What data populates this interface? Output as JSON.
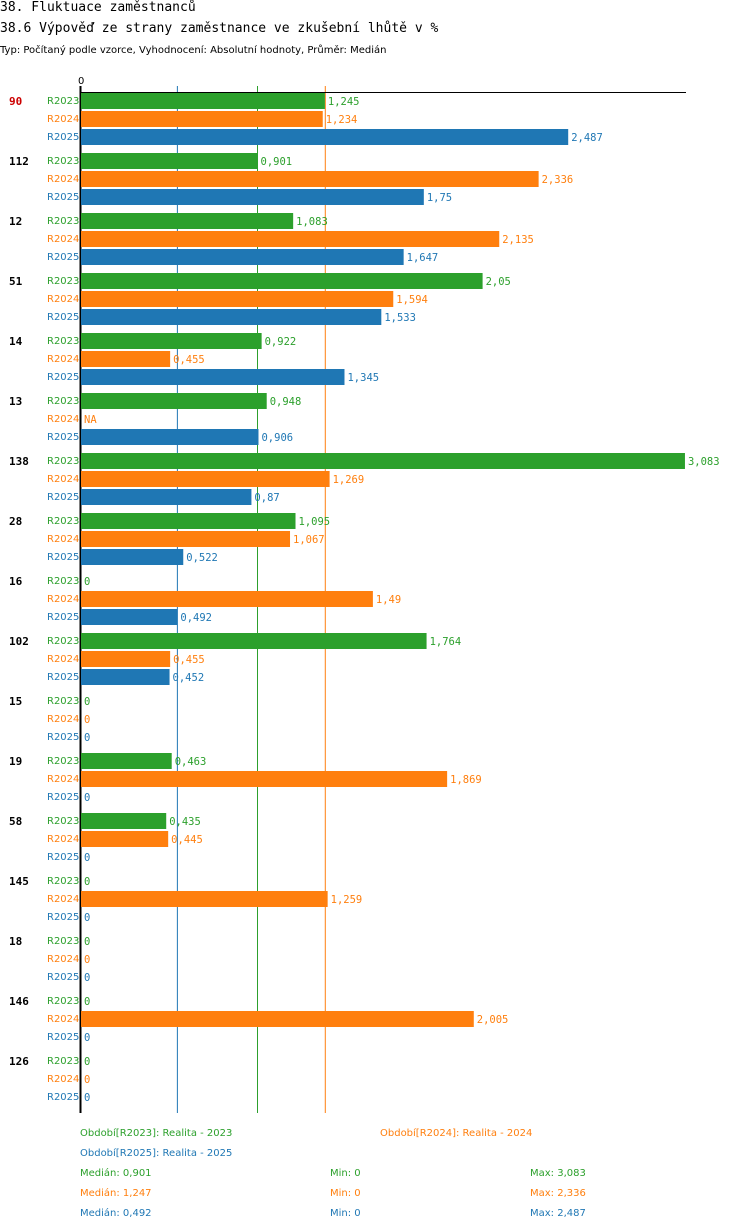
{
  "title": "38. Fluktuace zaměstnanců",
  "subtitle": "38.6 Výpověď ze strany zaměstnance ve zkušební lhůtě v %",
  "type_line": "Typ: Počítaný podle vzorce, Vyhodnocení: Absolutní hodnoty, Průměr: Medián",
  "colors": {
    "R2023": "#2ca02c",
    "R2024": "#ff7f0e",
    "R2025": "#1f77b4",
    "highlight": "#cc0000"
  },
  "chart_data": {
    "type": "bar",
    "orientation": "horizontal",
    "axis_zero_label": "0",
    "xlim": [
      0,
      3.083
    ],
    "series_names": [
      "R2023",
      "R2024",
      "R2025"
    ],
    "highlight_group": "90",
    "groups": [
      {
        "name": "90",
        "values": [
          1.245,
          1.234,
          2.487
        ],
        "labels": [
          "1,245",
          "1,234",
          "2,487"
        ]
      },
      {
        "name": "112",
        "values": [
          0.901,
          2.336,
          1.75
        ],
        "labels": [
          "0,901",
          "2,336",
          "1,75"
        ]
      },
      {
        "name": "12",
        "values": [
          1.083,
          2.135,
          1.647
        ],
        "labels": [
          "1,083",
          "2,135",
          "1,647"
        ]
      },
      {
        "name": "51",
        "values": [
          2.05,
          1.594,
          1.533
        ],
        "labels": [
          "2,05",
          "1,594",
          "1,533"
        ]
      },
      {
        "name": "14",
        "values": [
          0.922,
          0.455,
          1.345
        ],
        "labels": [
          "0,922",
          "0,455",
          "1,345"
        ]
      },
      {
        "name": "13",
        "values": [
          0.948,
          null,
          0.906
        ],
        "labels": [
          "0,948",
          "NA",
          "0,906"
        ]
      },
      {
        "name": "138",
        "values": [
          3.083,
          1.269,
          0.87
        ],
        "labels": [
          "3,083",
          "1,269",
          "0,87"
        ]
      },
      {
        "name": "28",
        "values": [
          1.095,
          1.067,
          0.522
        ],
        "labels": [
          "1,095",
          "1,067",
          "0,522"
        ]
      },
      {
        "name": "16",
        "values": [
          0,
          1.49,
          0.492
        ],
        "labels": [
          "0",
          "1,49",
          "0,492"
        ]
      },
      {
        "name": "102",
        "values": [
          1.764,
          0.455,
          0.452
        ],
        "labels": [
          "1,764",
          "0,455",
          "0,452"
        ]
      },
      {
        "name": "15",
        "values": [
          0,
          0,
          0
        ],
        "labels": [
          "0",
          "0",
          "0"
        ]
      },
      {
        "name": "19",
        "values": [
          0.463,
          1.869,
          0
        ],
        "labels": [
          "0,463",
          "1,869",
          "0"
        ]
      },
      {
        "name": "58",
        "values": [
          0.435,
          0.445,
          0
        ],
        "labels": [
          "0,435",
          "0,445",
          "0"
        ]
      },
      {
        "name": "145",
        "values": [
          0,
          1.259,
          0
        ],
        "labels": [
          "0",
          "1,259",
          "0"
        ]
      },
      {
        "name": "18",
        "values": [
          0,
          0,
          0
        ],
        "labels": [
          "0",
          "0",
          "0"
        ]
      },
      {
        "name": "146",
        "values": [
          0,
          2.005,
          0
        ],
        "labels": [
          "0",
          "2,005",
          "0"
        ]
      },
      {
        "name": "126",
        "values": [
          0,
          0,
          0
        ],
        "labels": [
          "0",
          "0",
          "0"
        ]
      }
    ],
    "median_lines": [
      {
        "series": "R2023",
        "value": 0.901
      },
      {
        "series": "R2024",
        "value": 1.247
      },
      {
        "series": "R2025",
        "value": 0.492
      }
    ]
  },
  "legend": {
    "r2023": "Období[R2023]: Realita - 2023",
    "r2024": "Období[R2024]: Realita - 2024",
    "r2025": "Období[R2025]: Realita - 2025"
  },
  "stats": [
    {
      "series": "R2023",
      "median": "Medián: 0,901",
      "min": "Min: 0",
      "max": "Max: 3,083"
    },
    {
      "series": "R2024",
      "median": "Medián: 1,247",
      "min": "Min: 0",
      "max": "Max: 2,336"
    },
    {
      "series": "R2025",
      "median": "Medián: 0,492",
      "min": "Min: 0",
      "max": "Max: 2,487"
    }
  ]
}
